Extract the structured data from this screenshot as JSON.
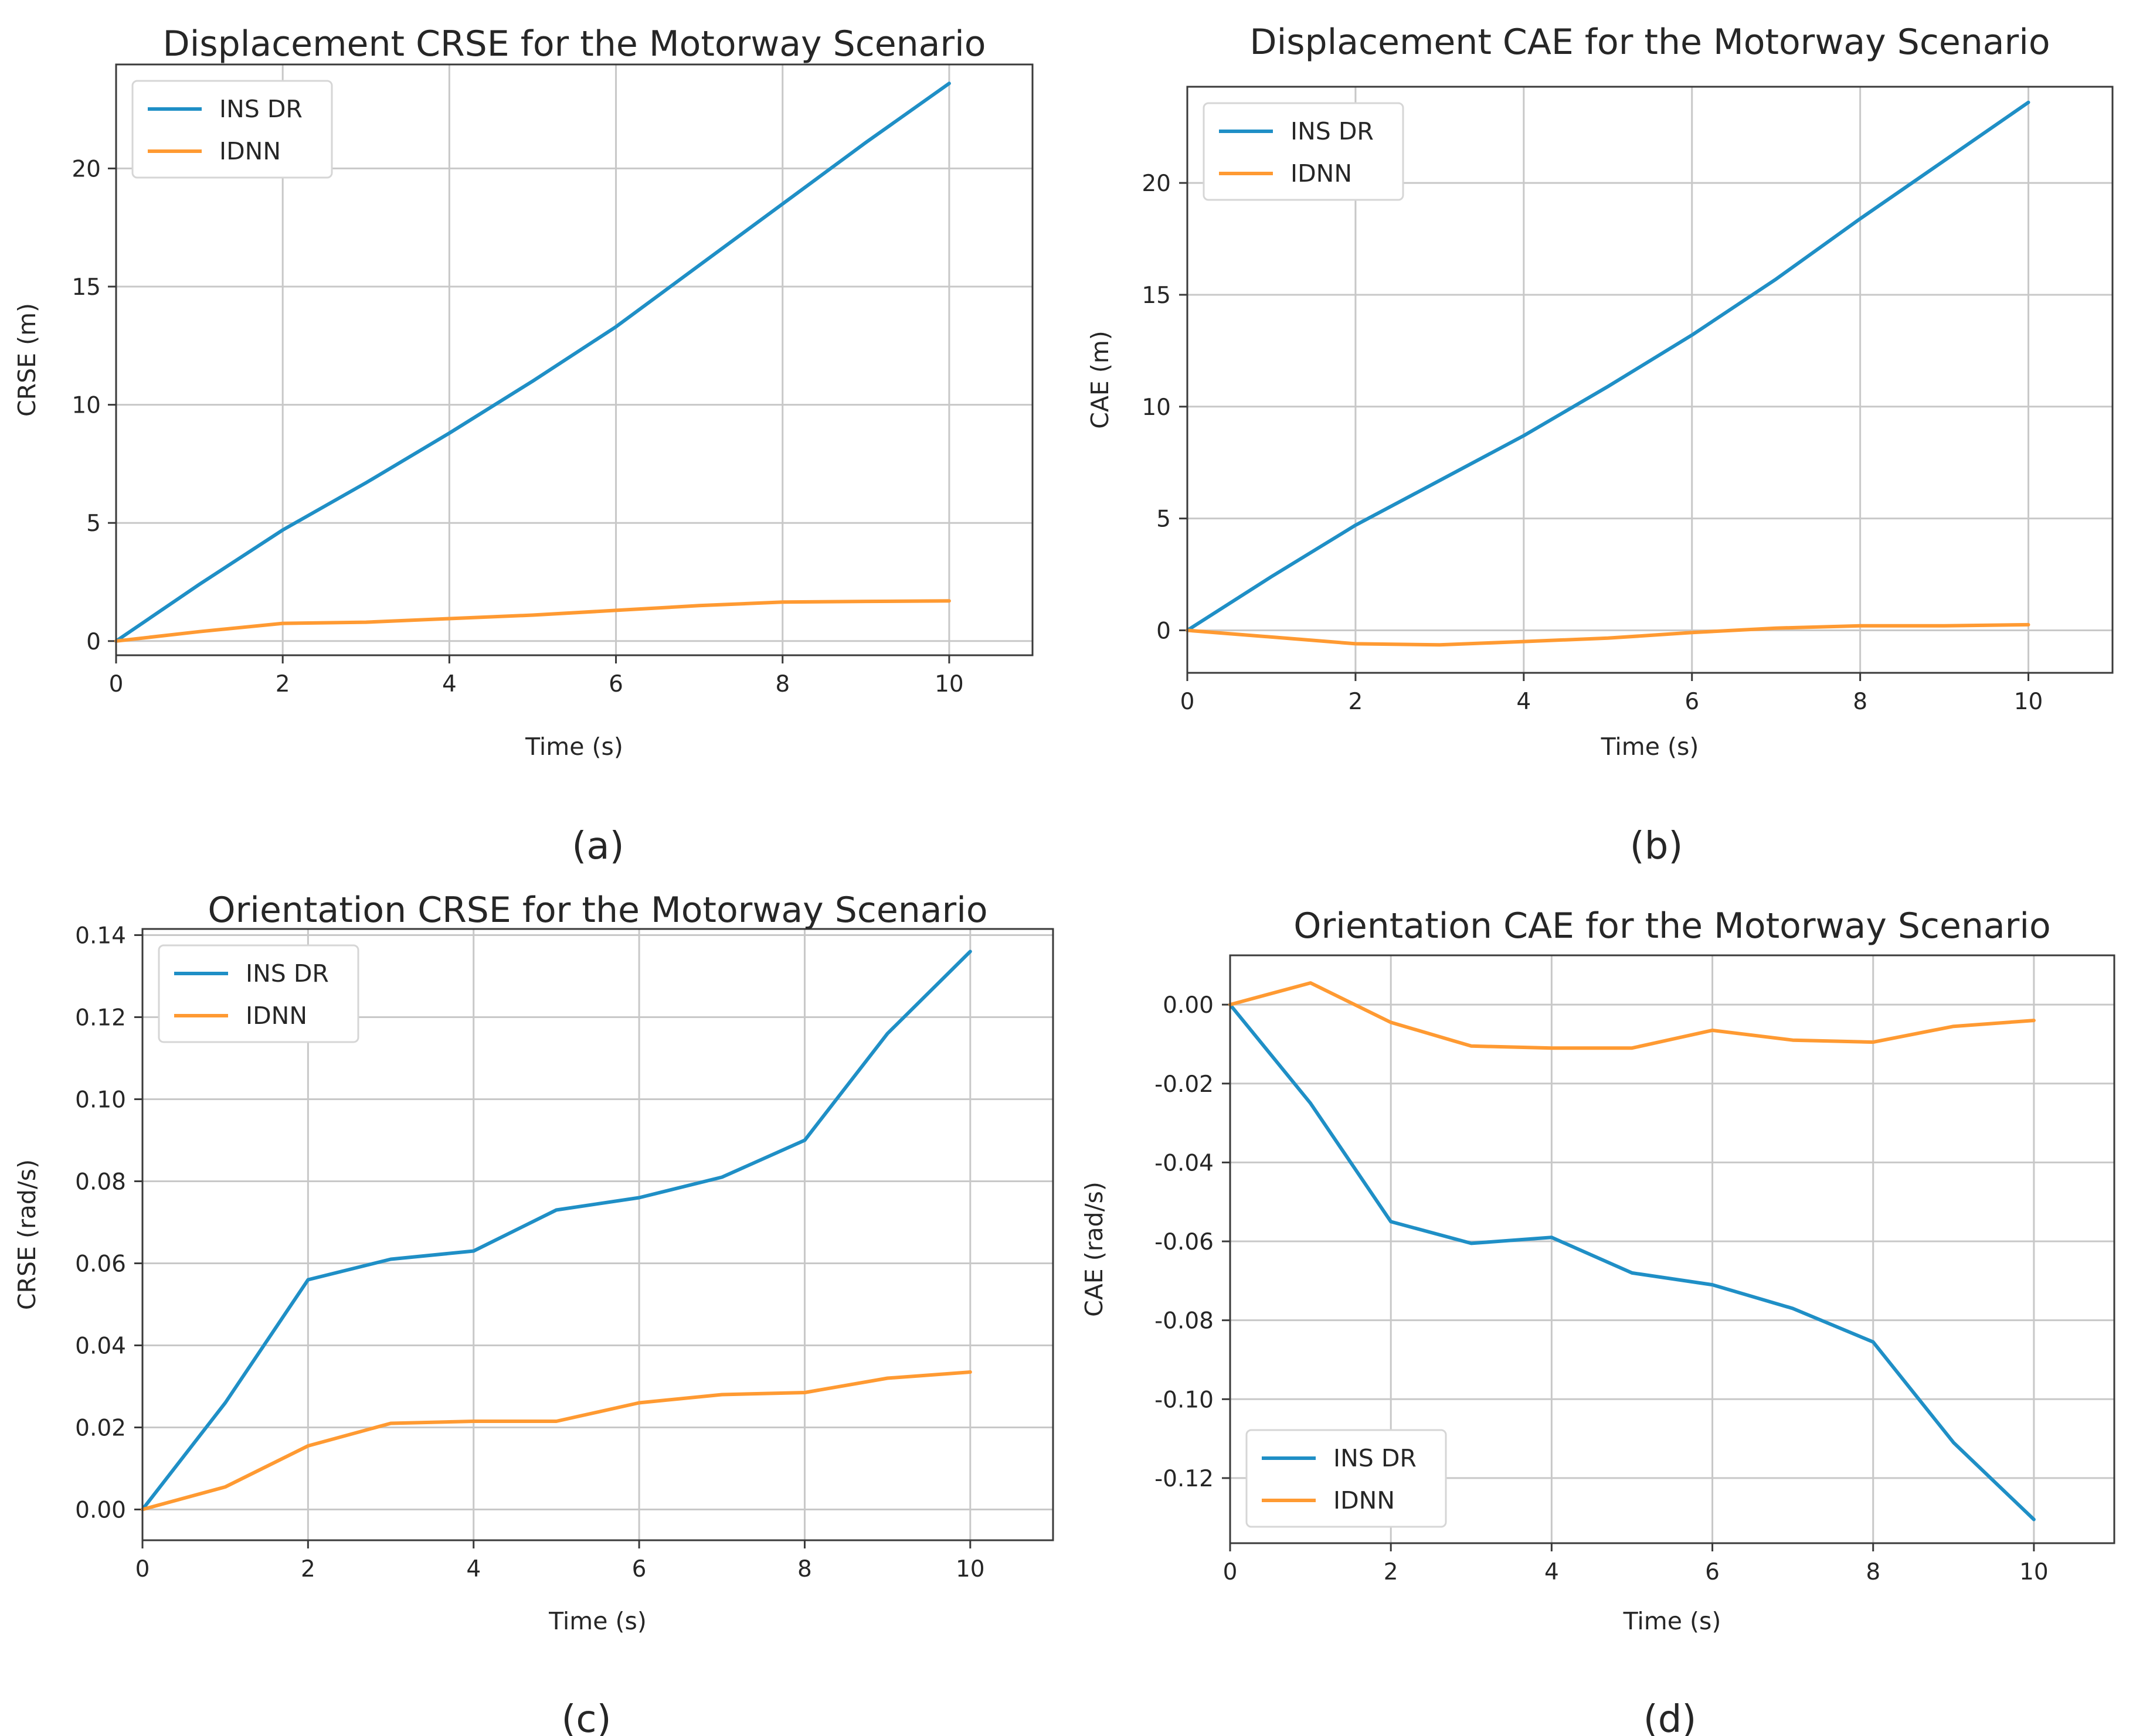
{
  "colors": {
    "ins": "#1f8fc6",
    "idnn": "#ff9a32",
    "grid": "#c8c8c8",
    "frame": "#3a3a3a",
    "text": "#262626"
  },
  "chart_data": [
    {
      "type": "line",
      "id": "a",
      "title": "Displacement CRSE for the Motorway Scenario",
      "xlabel": "Time (s)",
      "ylabel": "CRSE (m)",
      "caption": "(a)",
      "xlim": [
        0,
        11
      ],
      "ylim": [
        -0.6,
        24.4
      ],
      "xticks": [
        0,
        2,
        4,
        6,
        8,
        10
      ],
      "yticks": [
        0,
        5,
        10,
        15,
        20
      ],
      "ytick_labels": [
        "0",
        "5",
        "10",
        "15",
        "20"
      ],
      "legend": "top-left",
      "x": [
        0,
        1,
        2,
        3,
        4,
        5,
        6,
        7,
        8,
        9,
        10
      ],
      "series": [
        {
          "name": "INS DR",
          "values": [
            0,
            2.4,
            4.7,
            6.7,
            8.8,
            11.0,
            13.3,
            15.9,
            18.5,
            21.1,
            23.6
          ]
        },
        {
          "name": "IDNN",
          "values": [
            0,
            0.4,
            0.75,
            0.8,
            0.95,
            1.1,
            1.3,
            1.5,
            1.65,
            1.68,
            1.7
          ]
        }
      ]
    },
    {
      "type": "line",
      "id": "b",
      "title": "Displacement CAE for the Motorway Scenario",
      "xlabel": "Time (s)",
      "ylabel": "CAE (m)",
      "caption": "(b)",
      "xlim": [
        0,
        11
      ],
      "ylim": [
        -1.9,
        24.3
      ],
      "xticks": [
        0,
        2,
        4,
        6,
        8,
        10
      ],
      "yticks": [
        0,
        5,
        10,
        15,
        20
      ],
      "ytick_labels": [
        "0",
        "5",
        "10",
        "15",
        "20"
      ],
      "legend": "top-left",
      "x": [
        0,
        1,
        2,
        3,
        4,
        5,
        6,
        7,
        8,
        9,
        10
      ],
      "series": [
        {
          "name": "INS DR",
          "values": [
            0,
            2.4,
            4.7,
            6.7,
            8.7,
            10.9,
            13.2,
            15.7,
            18.4,
            21.0,
            23.6
          ]
        },
        {
          "name": "IDNN",
          "values": [
            0,
            -0.3,
            -0.6,
            -0.65,
            -0.5,
            -0.35,
            -0.1,
            0.1,
            0.2,
            0.2,
            0.25
          ]
        }
      ]
    },
    {
      "type": "line",
      "id": "c",
      "title": "Orientation CRSE for the Motorway Scenario",
      "xlabel": "Time (s)",
      "ylabel": "CRSE (rad/s)",
      "caption": "(c)",
      "xlim": [
        0,
        11
      ],
      "ylim": [
        -0.0075,
        0.1415
      ],
      "xticks": [
        0,
        2,
        4,
        6,
        8,
        10
      ],
      "yticks": [
        0,
        0.02,
        0.04,
        0.06,
        0.08,
        0.1,
        0.12,
        0.14
      ],
      "ytick_labels": [
        "0.00",
        "0.02",
        "0.04",
        "0.06",
        "0.08",
        "0.10",
        "0.12",
        "0.14"
      ],
      "legend": "top-left",
      "x": [
        0,
        1,
        2,
        3,
        4,
        5,
        6,
        7,
        8,
        9,
        10
      ],
      "series": [
        {
          "name": "INS DR",
          "values": [
            0,
            0.026,
            0.056,
            0.061,
            0.063,
            0.073,
            0.076,
            0.081,
            0.09,
            0.116,
            0.136
          ]
        },
        {
          "name": "IDNN",
          "values": [
            0,
            0.0055,
            0.0155,
            0.021,
            0.0215,
            0.0215,
            0.026,
            0.028,
            0.0285,
            0.032,
            0.0335
          ]
        }
      ]
    },
    {
      "type": "line",
      "id": "d",
      "title": "Orientation CAE for the Motorway Scenario",
      "xlabel": "Time (s)",
      "ylabel": "CAE (rad/s)",
      "caption": "(d)",
      "xlim": [
        0,
        11
      ],
      "ylim": [
        -0.1365,
        0.0125
      ],
      "xticks": [
        0,
        2,
        4,
        6,
        8,
        10
      ],
      "yticks": [
        -0.12,
        -0.1,
        -0.08,
        -0.06,
        -0.04,
        -0.02,
        0.0
      ],
      "ytick_labels": [
        "-0.12",
        "-0.10",
        "-0.08",
        "-0.06",
        "-0.04",
        "-0.02",
        "0.00"
      ],
      "legend": "bottom-left",
      "x": [
        0,
        1,
        2,
        3,
        4,
        5,
        6,
        7,
        8,
        9,
        10
      ],
      "series": [
        {
          "name": "INS DR",
          "values": [
            0,
            -0.025,
            -0.055,
            -0.0605,
            -0.059,
            -0.068,
            -0.071,
            -0.077,
            -0.0855,
            -0.111,
            -0.1305
          ]
        },
        {
          "name": "IDNN",
          "values": [
            0,
            0.0055,
            -0.0045,
            -0.0105,
            -0.011,
            -0.011,
            -0.0065,
            -0.009,
            -0.0095,
            -0.0055,
            -0.004
          ]
        }
      ]
    }
  ]
}
